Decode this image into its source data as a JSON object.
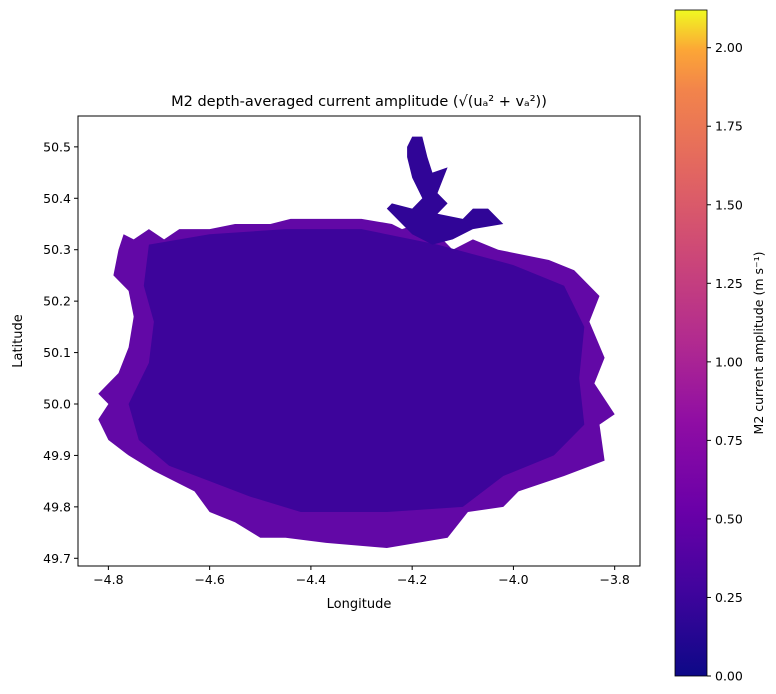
{
  "chart_data": {
    "type": "heatmap",
    "title": "M2 depth-averaged current amplitude (√(uₐ² + vₐ²))",
    "xlabel": "Longitude",
    "ylabel": "Latitude",
    "xlim": [
      -4.86,
      -3.75
    ],
    "ylim": [
      49.685,
      50.56
    ],
    "xticks": [
      -4.8,
      -4.6,
      -4.4,
      -4.2,
      -4.0,
      -3.8
    ],
    "xtick_labels": [
      "−4.8",
      "−4.6",
      "−4.4",
      "−4.2",
      "−4.0",
      "−3.8"
    ],
    "yticks": [
      49.7,
      49.8,
      49.9,
      50.0,
      50.1,
      50.2,
      50.3,
      50.4,
      50.5
    ],
    "ytick_labels": [
      "49.7",
      "49.8",
      "49.9",
      "50.0",
      "50.1",
      "50.2",
      "50.3",
      "50.4",
      "50.5"
    ],
    "grid": false,
    "colormap": "plasma",
    "colorbar": {
      "label": "M2 current amplitude (m s⁻¹)",
      "range": [
        0,
        2.12
      ],
      "ticks": [
        0.0,
        0.25,
        0.5,
        0.75,
        1.0,
        1.25,
        1.5,
        1.75,
        2.0
      ],
      "tick_labels": [
        "0.00",
        "0.25",
        "0.50",
        "0.75",
        "1.00",
        "1.25",
        "1.50",
        "1.75",
        "2.00"
      ]
    },
    "domain_outer": [
      [
        -4.77,
        50.33
      ],
      [
        -4.75,
        50.32
      ],
      [
        -4.72,
        50.34
      ],
      [
        -4.69,
        50.32
      ],
      [
        -4.66,
        50.34
      ],
      [
        -4.6,
        50.34
      ],
      [
        -4.55,
        50.35
      ],
      [
        -4.48,
        50.35
      ],
      [
        -4.44,
        50.36
      ],
      [
        -4.37,
        50.36
      ],
      [
        -4.3,
        50.36
      ],
      [
        -4.24,
        50.35
      ],
      [
        -4.22,
        50.34
      ],
      [
        -4.19,
        50.35
      ],
      [
        -4.17,
        50.33
      ],
      [
        -4.15,
        50.33
      ],
      [
        -4.12,
        50.3
      ],
      [
        -4.08,
        50.32
      ],
      [
        -4.03,
        50.3
      ],
      [
        -3.98,
        50.29
      ],
      [
        -3.93,
        50.28
      ],
      [
        -3.88,
        50.26
      ],
      [
        -3.83,
        50.21
      ],
      [
        -3.85,
        50.16
      ],
      [
        -3.82,
        50.09
      ],
      [
        -3.84,
        50.04
      ],
      [
        -3.8,
        49.98
      ],
      [
        -3.83,
        49.96
      ],
      [
        -3.82,
        49.89
      ],
      [
        -3.9,
        49.86
      ],
      [
        -3.99,
        49.83
      ],
      [
        -4.02,
        49.8
      ],
      [
        -4.09,
        49.79
      ],
      [
        -4.13,
        49.74
      ],
      [
        -4.25,
        49.72
      ],
      [
        -4.37,
        49.73
      ],
      [
        -4.45,
        49.74
      ],
      [
        -4.5,
        49.74
      ],
      [
        -4.55,
        49.77
      ],
      [
        -4.6,
        49.79
      ],
      [
        -4.63,
        49.83
      ],
      [
        -4.71,
        49.87
      ],
      [
        -4.76,
        49.9
      ],
      [
        -4.8,
        49.93
      ],
      [
        -4.82,
        49.97
      ],
      [
        -4.8,
        50.0
      ],
      [
        -4.82,
        50.02
      ],
      [
        -4.78,
        50.06
      ],
      [
        -4.76,
        50.11
      ],
      [
        -4.75,
        50.17
      ],
      [
        -4.76,
        50.22
      ],
      [
        -4.79,
        50.25
      ],
      [
        -4.78,
        50.3
      ]
    ],
    "domain_inner": [
      [
        -4.72,
        50.31
      ],
      [
        -4.6,
        50.33
      ],
      [
        -4.45,
        50.34
      ],
      [
        -4.3,
        50.34
      ],
      [
        -4.15,
        50.31
      ],
      [
        -4.0,
        50.27
      ],
      [
        -3.9,
        50.23
      ],
      [
        -3.86,
        50.15
      ],
      [
        -3.87,
        50.05
      ],
      [
        -3.86,
        49.96
      ],
      [
        -3.92,
        49.9
      ],
      [
        -4.02,
        49.86
      ],
      [
        -4.1,
        49.8
      ],
      [
        -4.25,
        49.79
      ],
      [
        -4.42,
        49.79
      ],
      [
        -4.52,
        49.82
      ],
      [
        -4.6,
        49.85
      ],
      [
        -4.68,
        49.88
      ],
      [
        -4.74,
        49.93
      ],
      [
        -4.76,
        50.0
      ],
      [
        -4.72,
        50.08
      ],
      [
        -4.71,
        50.16
      ],
      [
        -4.73,
        50.23
      ]
    ],
    "estuary": [
      [
        -4.2,
        50.52
      ],
      [
        -4.18,
        50.52
      ],
      [
        -4.17,
        50.48
      ],
      [
        -4.16,
        50.45
      ],
      [
        -4.13,
        50.46
      ],
      [
        -4.15,
        50.41
      ],
      [
        -4.13,
        50.39
      ],
      [
        -4.15,
        50.37
      ],
      [
        -4.1,
        50.36
      ],
      [
        -4.08,
        50.38
      ],
      [
        -4.05,
        50.38
      ],
      [
        -4.03,
        50.36
      ],
      [
        -4.02,
        50.35
      ],
      [
        -4.08,
        50.34
      ],
      [
        -4.12,
        50.32
      ],
      [
        -4.16,
        50.31
      ],
      [
        -4.2,
        50.33
      ],
      [
        -4.22,
        50.35
      ],
      [
        -4.25,
        50.38
      ],
      [
        -4.24,
        50.39
      ],
      [
        -4.2,
        50.38
      ],
      [
        -4.18,
        50.4
      ],
      [
        -4.2,
        50.44
      ],
      [
        -4.21,
        50.48
      ],
      [
        -4.21,
        50.5
      ]
    ]
  }
}
